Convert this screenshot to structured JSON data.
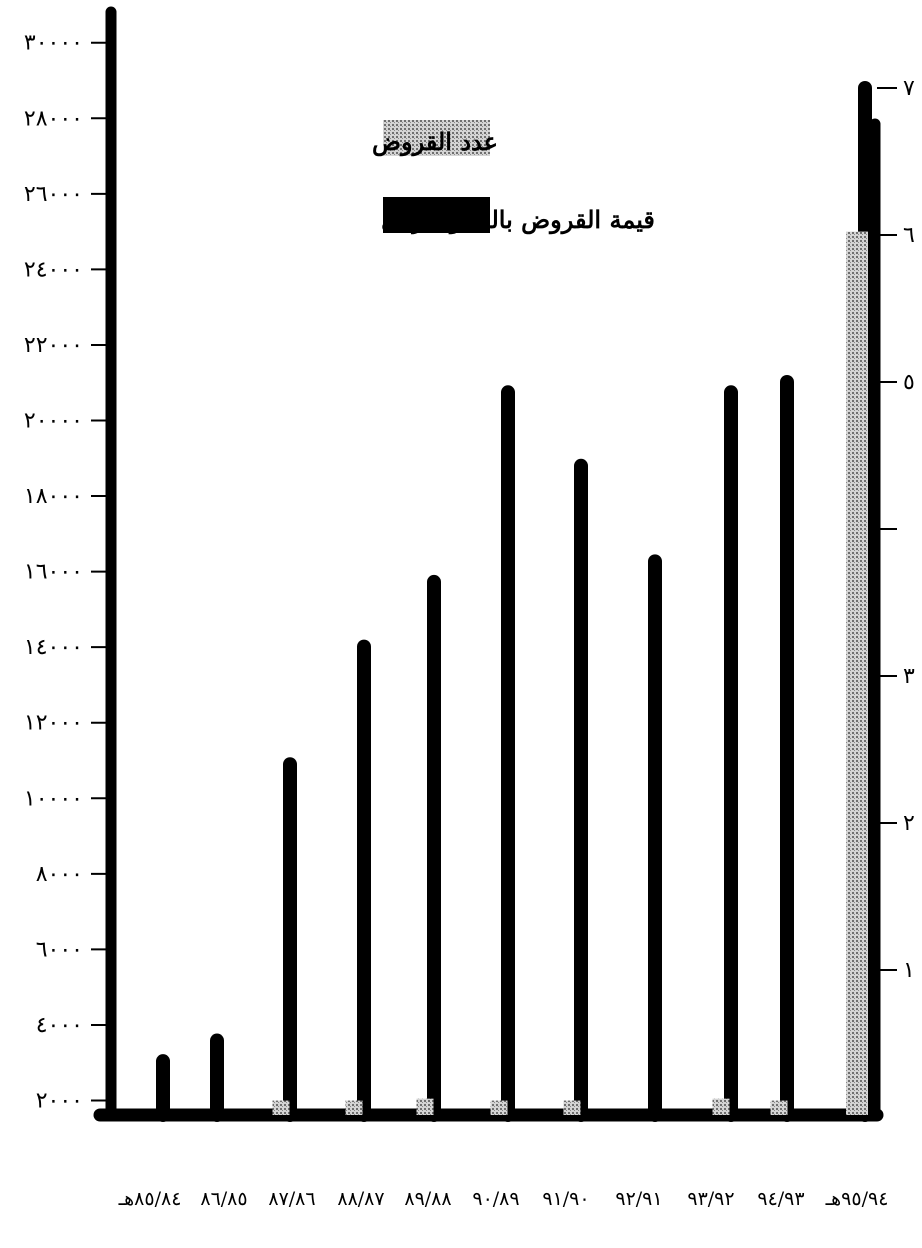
{
  "chart_data": {
    "type": "bar",
    "title": "",
    "xlabel": "",
    "ylabel": "",
    "categories": [
      "٨٥/٨٤هـ",
      "٨٦/٨٥",
      "٨٧/٨٦",
      "٨٨/٨٧",
      "٨٩/٨٨",
      "٩٠/٨٩",
      "٩١/٩٠",
      "٩٢/٩١",
      "٩٣/٩٢",
      "٩٤/٩٣",
      "٩٥/٩٤هـ"
    ],
    "left_axis": {
      "ticks": [
        2000,
        4000,
        6000,
        8000,
        10000,
        12000,
        14000,
        16000,
        18000,
        20000,
        22000,
        24000,
        26000,
        28000,
        30000
      ],
      "tick_labels": [
        "٢٠٠٠",
        "٤٠٠٠",
        "٦٠٠٠",
        "٨٠٠٠",
        "١٠٠٠٠",
        "١٢٠٠٠",
        "١٤٠٠٠",
        "١٦٠٠٠",
        "١٨٠٠٠",
        "٢٠٠٠٠",
        "٢٢٠٠٠",
        "٢٤٠٠٠",
        "٢٦٠٠٠",
        "٢٨٠٠٠",
        "٣٠٠٠٠"
      ],
      "range": [
        0,
        30000
      ]
    },
    "right_axis": {
      "ticks": [
        1,
        2,
        3,
        4,
        5,
        6,
        7
      ],
      "tick_labels": [
        "١",
        "٢",
        "٣",
        "",
        "٥",
        "٦",
        "٧"
      ],
      "range": [
        0,
        7
      ]
    },
    "series": [
      {
        "name": "عدد القروض",
        "axis": "left",
        "color": "#bdbdbd",
        "pattern": "dotted",
        "values": [
          1300,
          1300,
          2000,
          2000,
          2050,
          2000,
          2000,
          1300,
          2050,
          2000,
          25000
        ]
      },
      {
        "name": "قيمة القروض بالمليون ريال",
        "axis": "right",
        "color": "#000000",
        "values": [
          0.38,
          0.52,
          2.4,
          3.2,
          3.64,
          4.93,
          4.43,
          3.78,
          4.93,
          5.0,
          7.0
        ]
      }
    ],
    "legend": [
      {
        "label": "عدد القروض",
        "swatch": "dotted-gray"
      },
      {
        "label": "قيمة القروض بالمليون ريال",
        "swatch": "black"
      }
    ],
    "legend_position": "top-center",
    "grid": false
  }
}
